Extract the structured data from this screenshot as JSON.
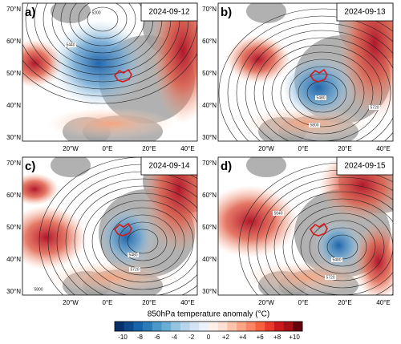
{
  "panels": [
    {
      "label": "a)",
      "date": "2024-09-12",
      "contour_labels": [
        "5200",
        "5440"
      ]
    },
    {
      "label": "b)",
      "date": "2024-09-13",
      "contour_labels": [
        "5480",
        "5720",
        "5800"
      ]
    },
    {
      "label": "c)",
      "date": "2024-09-14",
      "contour_labels": [
        "5480",
        "5720",
        "5800"
      ]
    },
    {
      "label": "d)",
      "date": "2024-09-15",
      "contour_labels": [
        "5640",
        "5480",
        "5720"
      ]
    }
  ],
  "axes": {
    "lat_labels": [
      "70°N",
      "60°N",
      "50°N",
      "40°N",
      "30°N"
    ],
    "lon_labels": [
      "20°W",
      "0°E",
      "20°E",
      "40°E"
    ]
  },
  "colorbar": {
    "title": "850hPa temperature anomaly (°C)",
    "ticks": [
      "-10",
      "-8",
      "-6",
      "-4",
      "-2",
      "0",
      "+2",
      "+4",
      "+6",
      "+8",
      "+10"
    ],
    "colors": [
      "#08306b",
      "#0d4a8c",
      "#1764ab",
      "#2b7bba",
      "#4a98c9",
      "#6aaed6",
      "#94c4df",
      "#b7d4ea",
      "#d3e3f3",
      "#eaf2fb",
      "#fff0ea",
      "#fde0d2",
      "#fcc2aa",
      "#fca486",
      "#fb8464",
      "#f6603f",
      "#e83a2a",
      "#cb181d",
      "#a50f15",
      "#67000d"
    ]
  }
}
